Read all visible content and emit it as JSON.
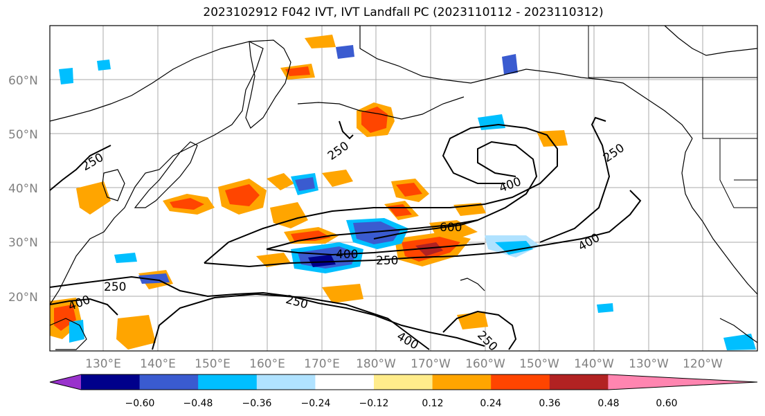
{
  "title": "2023102912 F042 IVT, IVT Landfall PC (2023110112 - 2023110312)",
  "map": {
    "lat_labels": [
      "60°N",
      "50°N",
      "40°N",
      "30°N",
      "20°N"
    ],
    "lon_labels": [
      "130°E",
      "140°E",
      "150°E",
      "160°E",
      "170°E",
      "180°W",
      "170°W",
      "160°W",
      "150°W",
      "140°W",
      "130°W",
      "120°W"
    ],
    "contour_labels": [
      "250",
      "250",
      "250",
      "400",
      "600",
      "400",
      "250",
      "400",
      "250",
      "250",
      "400",
      "400",
      "250"
    ]
  },
  "colorbar": {
    "colors": [
      "#9932cc",
      "#00008b",
      "#3a5bd0",
      "#00bfff",
      "#b0e2ff",
      "#ffffff",
      "#ffec8b",
      "#ffa500",
      "#ff4500",
      "#b22222",
      "#ff85b0"
    ],
    "tick_labels": [
      "−0.60",
      "−0.48",
      "−0.36",
      "−0.24",
      "−0.12",
      "0.12",
      "0.24",
      "0.36",
      "0.48",
      "0.60"
    ]
  }
}
